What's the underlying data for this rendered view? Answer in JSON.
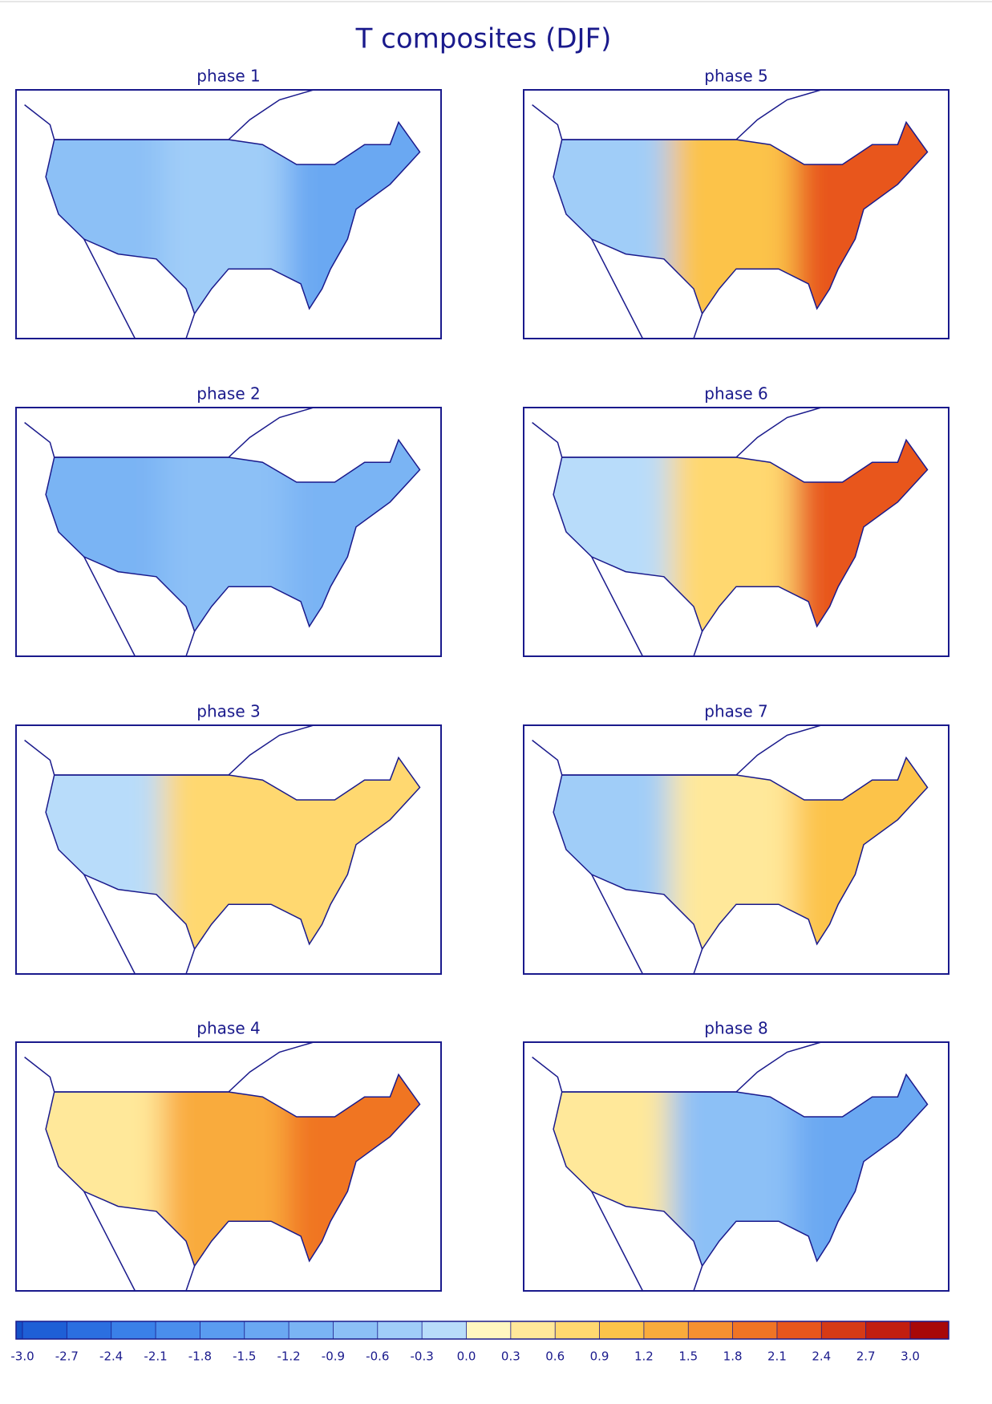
{
  "title": "T composites (DJF)",
  "panels": [
    {
      "title": "phase 1",
      "anomaly": [
        -0.9,
        -0.6,
        -1.5
      ]
    },
    {
      "title": "phase 5",
      "anomaly": [
        -0.6,
        0.9,
        2.1
      ]
    },
    {
      "title": "phase 2",
      "anomaly": [
        -1.2,
        -0.9,
        -1.2
      ]
    },
    {
      "title": "phase 6",
      "anomaly": [
        -0.3,
        0.6,
        2.1
      ]
    },
    {
      "title": "phase 3",
      "anomaly": [
        -0.3,
        0.6,
        0.6
      ]
    },
    {
      "title": "phase 7",
      "anomaly": [
        -0.6,
        0.3,
        0.9
      ]
    },
    {
      "title": "phase 4",
      "anomaly": [
        0.3,
        1.2,
        1.8
      ]
    },
    {
      "title": "phase 8",
      "anomaly": [
        0.3,
        -0.9,
        -1.5
      ]
    }
  ],
  "colorbar": {
    "ticks": [
      {
        "value": -3,
        "label": "-3.0"
      },
      -2.7,
      -2.4,
      -2.1,
      -1.8,
      -1.5,
      -1.2,
      -0.9,
      -0.6,
      -0.3,
      {
        "value": 0,
        "label": "0.0"
      },
      0.3,
      0.6,
      0.9,
      1.2,
      1.5,
      1.8,
      2.1,
      2.4,
      2.7,
      {
        "value": 3,
        "label": "3.0"
      }
    ],
    "colors": [
      "#1e5fd6",
      "#2b6fe0",
      "#3a80e8",
      "#4a8eec",
      "#5a9cf0",
      "#6aa8f2",
      "#7ab4f4",
      "#8cc0f6",
      "#a0cdf8",
      "#b8dcfa",
      "#fff7c0",
      "#ffe89a",
      "#ffd870",
      "#fcc34a",
      "#f9ab3c",
      "#f59030",
      "#f07424",
      "#e8561c",
      "#d63a16",
      "#c21e10"
    ],
    "under": "#1451c8",
    "over": "#a80808"
  }
}
